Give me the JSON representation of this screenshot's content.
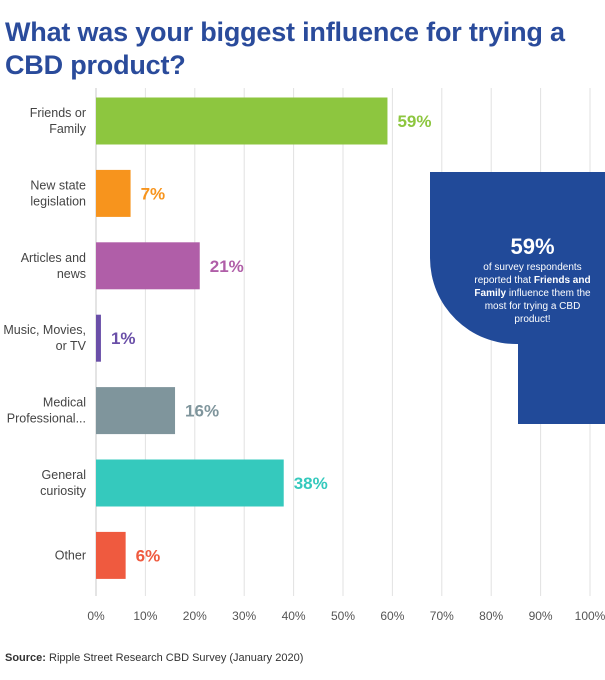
{
  "chart_data": {
    "type": "bar",
    "orientation": "horizontal",
    "title": "What was your biggest influence for trying a CBD product?",
    "categories": [
      [
        "Friends or",
        "Family"
      ],
      [
        "New state",
        "legislation"
      ],
      [
        "Articles and",
        "news"
      ],
      [
        "Music, Movies,",
        "or TV"
      ],
      [
        "Medical",
        "Professional..."
      ],
      [
        "General",
        "curiosity"
      ],
      [
        "Other"
      ]
    ],
    "values": [
      59,
      7,
      21,
      1,
      16,
      38,
      6
    ],
    "value_labels": [
      "59%",
      "7%",
      "21%",
      "1%",
      "16%",
      "38%",
      "6%"
    ],
    "colors": [
      "#8dc63f",
      "#f7941d",
      "#b05ea8",
      "#6a4fa8",
      "#7f959c",
      "#35c9bd",
      "#ef5a3f"
    ],
    "xlim": [
      0,
      100
    ],
    "xticks": [
      0,
      10,
      20,
      30,
      40,
      50,
      60,
      70,
      80,
      90,
      100
    ],
    "xtick_labels": [
      "0%",
      "10%",
      "20%",
      "30%",
      "40%",
      "50%",
      "60%",
      "70%",
      "80%",
      "90%",
      "100%"
    ],
    "grid": true
  },
  "callout": {
    "value": "59%",
    "text_before": "of survey respondents reported that ",
    "text_bold": "Friends and Family",
    "text_after": " influence them the most for trying a CBD product!",
    "color": "#214a99"
  },
  "source": {
    "label": "Source:",
    "text": " Ripple Street Research CBD Survey (January 2020)"
  }
}
